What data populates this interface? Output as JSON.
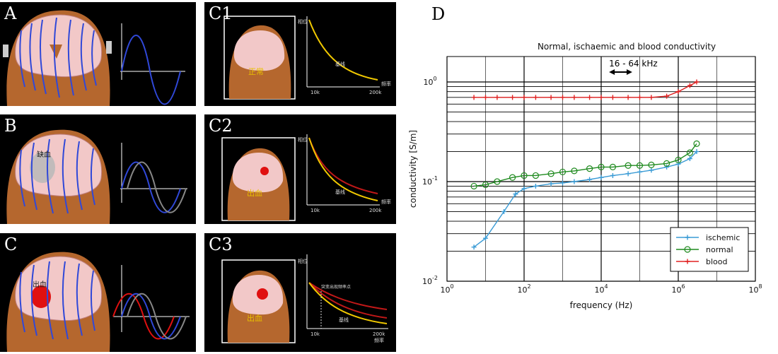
{
  "panels": {
    "A": {
      "label": "A"
    },
    "B": {
      "label": "B",
      "lesion_text": "缺血"
    },
    "C": {
      "label": "C",
      "lesion_text": "出血"
    },
    "C1": {
      "label": "C1",
      "brain_text": "正常",
      "ylabel": "相位",
      "xlabel": "频率",
      "ticks": [
        "10k",
        "200k"
      ],
      "curve_label": "基线"
    },
    "C2": {
      "label": "C2",
      "brain_text": "出血",
      "ylabel": "相位",
      "xlabel": "频率",
      "ticks": [
        "10k",
        "200k"
      ],
      "curve_label": "基线"
    },
    "C3": {
      "label": "C3",
      "brain_text": "出血",
      "ylabel": "相位",
      "xlabel": "频率",
      "ticks": [
        "10k",
        "200k"
      ],
      "curve_label": "基线",
      "annotation": "突变出现频率点"
    },
    "D": {
      "label": "D"
    }
  },
  "chart_data": {
    "type": "line",
    "title": "Normal, ischaemic and blood conductivity",
    "xlabel": "frequency (Hz)",
    "ylabel": "conductivity [S/m]",
    "xscale": "log",
    "yscale": "log",
    "xlim": [
      1,
      100000000
    ],
    "ylim": [
      0.01,
      1.8
    ],
    "xticks": [
      {
        "value": 1,
        "base": "10",
        "exp": "0"
      },
      {
        "value": 100,
        "base": "10",
        "exp": "2"
      },
      {
        "value": 10000,
        "base": "10",
        "exp": "4"
      },
      {
        "value": 1000000,
        "base": "10",
        "exp": "6"
      },
      {
        "value": 100000000,
        "base": "10",
        "exp": "8"
      }
    ],
    "yticks": [
      {
        "value": 0.01,
        "base": "10",
        "exp": "-2"
      },
      {
        "value": 0.1,
        "base": "10",
        "exp": "-1"
      },
      {
        "value": 1,
        "base": "10",
        "exp": "0"
      }
    ],
    "grid": true,
    "legend_position": "bottom-right",
    "annotation": {
      "text": "16 - 64 kHz",
      "from": 16000,
      "to": 64000
    },
    "series": [
      {
        "name": "ischemic",
        "color": "#3a9bd5",
        "marker": "plus",
        "x": [
          5,
          10,
          30,
          60,
          100,
          200,
          500,
          1000,
          2000,
          5000,
          10000,
          20000,
          50000,
          100000,
          200000,
          500000,
          1000000,
          2000000,
          3000000
        ],
        "y": [
          0.022,
          0.027,
          0.05,
          0.075,
          0.085,
          0.09,
          0.095,
          0.097,
          0.1,
          0.105,
          0.11,
          0.115,
          0.12,
          0.125,
          0.13,
          0.14,
          0.15,
          0.17,
          0.2
        ]
      },
      {
        "name": "normal",
        "color": "#1e8a1e",
        "marker": "circle",
        "x": [
          5,
          10,
          20,
          50,
          100,
          200,
          500,
          1000,
          2000,
          5000,
          10000,
          20000,
          50000,
          100000,
          200000,
          500000,
          1000000,
          2000000,
          3000000
        ],
        "y": [
          0.09,
          0.093,
          0.1,
          0.11,
          0.115,
          0.115,
          0.12,
          0.125,
          0.128,
          0.135,
          0.14,
          0.14,
          0.145,
          0.145,
          0.147,
          0.152,
          0.165,
          0.195,
          0.24
        ]
      },
      {
        "name": "blood",
        "color": "#e02020",
        "marker": "plus",
        "x": [
          5,
          10,
          20,
          50,
          100,
          200,
          500,
          1000,
          2000,
          5000,
          10000,
          20000,
          50000,
          100000,
          200000,
          500000,
          1000000,
          2000000,
          3000000
        ],
        "y": [
          0.7,
          0.7,
          0.7,
          0.7,
          0.7,
          0.7,
          0.7,
          0.7,
          0.7,
          0.7,
          0.7,
          0.7,
          0.7,
          0.7,
          0.7,
          0.72,
          0.8,
          0.92,
          1.0
        ]
      }
    ]
  }
}
